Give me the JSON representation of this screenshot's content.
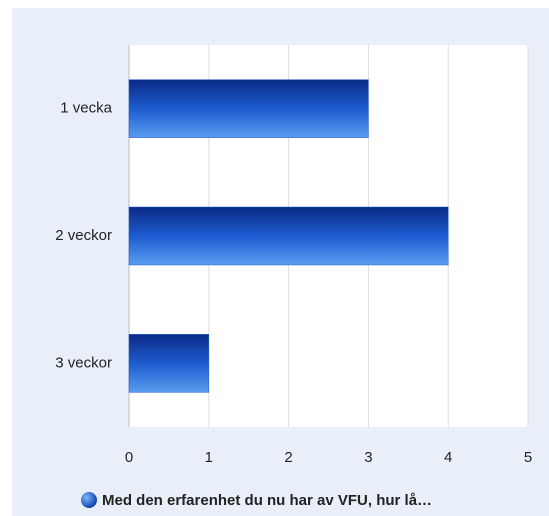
{
  "chart_data": {
    "type": "bar",
    "orientation": "horizontal",
    "categories": [
      "1 vecka",
      "2 veckor",
      "3 veckor"
    ],
    "series": [
      {
        "name": "Med den erfarenhet du nu har av VFU, hur lå…",
        "color": "#1e5bd0",
        "values": [
          3,
          4,
          1
        ]
      }
    ],
    "xlim": [
      0,
      5
    ],
    "xticks": [
      0,
      1,
      2,
      3,
      4,
      5
    ],
    "grid": true,
    "legend": "bottom"
  }
}
